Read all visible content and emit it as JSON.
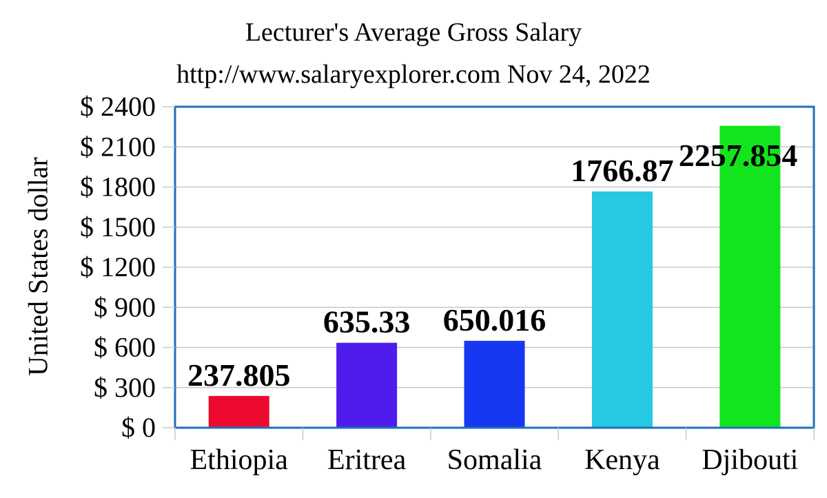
{
  "chart_data": {
    "type": "bar",
    "title": "Lecturer's Average Gross Salary",
    "subtitle": "http://www.salaryexplorer.com Nov 24, 2022",
    "xlabel": "",
    "ylabel": "United States dollar",
    "categories": [
      "Ethiopia",
      "Eritrea",
      "Somalia",
      "Kenya",
      "Djibouti"
    ],
    "values": [
      237.805,
      635.33,
      650.016,
      1766.87,
      2257.854
    ],
    "value_labels": [
      "237.805",
      "635.33",
      "650.016",
      "1766.87",
      "2257.854"
    ],
    "bar_colors": [
      "#ee0a2e",
      "#4e1ded",
      "#1538f0",
      "#26c8e3",
      "#12e51d"
    ],
    "ylim": [
      0,
      2400
    ],
    "yticks": [
      0,
      300,
      600,
      900,
      1200,
      1500,
      1800,
      2100,
      2400
    ],
    "ytick_labels": [
      "$ 0",
      "$ 300",
      "$ 600",
      "$ 900",
      "$ 1200",
      "$ 1500",
      "$ 1800",
      "$ 2100",
      "$ 2400"
    ],
    "grid": true,
    "legend": "none",
    "frame_color": "#1f6fbf"
  }
}
